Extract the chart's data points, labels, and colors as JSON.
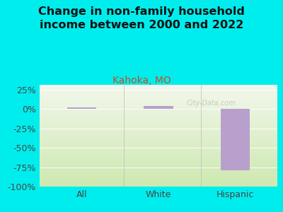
{
  "title": "Change in non-family household\nincome between 2000 and 2022",
  "subtitle": "Kahoka, MO",
  "categories": [
    "All",
    "White",
    "Hispanic"
  ],
  "values": [
    2.0,
    4.0,
    -79.0
  ],
  "bar_color": "#b9a0cc",
  "background_outer": "#00eded",
  "background_inner_top": "#f2f7eb",
  "background_inner_bottom": "#cde8b0",
  "ylim": [
    -100,
    31.25
  ],
  "yticks": [
    -100,
    -75,
    -50,
    -25,
    0,
    25
  ],
  "yticklabels": [
    "-100%",
    "-75%",
    "-50%",
    "-25%",
    "0%",
    "25%"
  ],
  "title_fontsize": 11.5,
  "subtitle_fontsize": 10,
  "subtitle_color": "#c05020",
  "title_color": "#111111",
  "tick_color": "#444444",
  "tick_fontsize": 9,
  "watermark": "City-Data.com"
}
